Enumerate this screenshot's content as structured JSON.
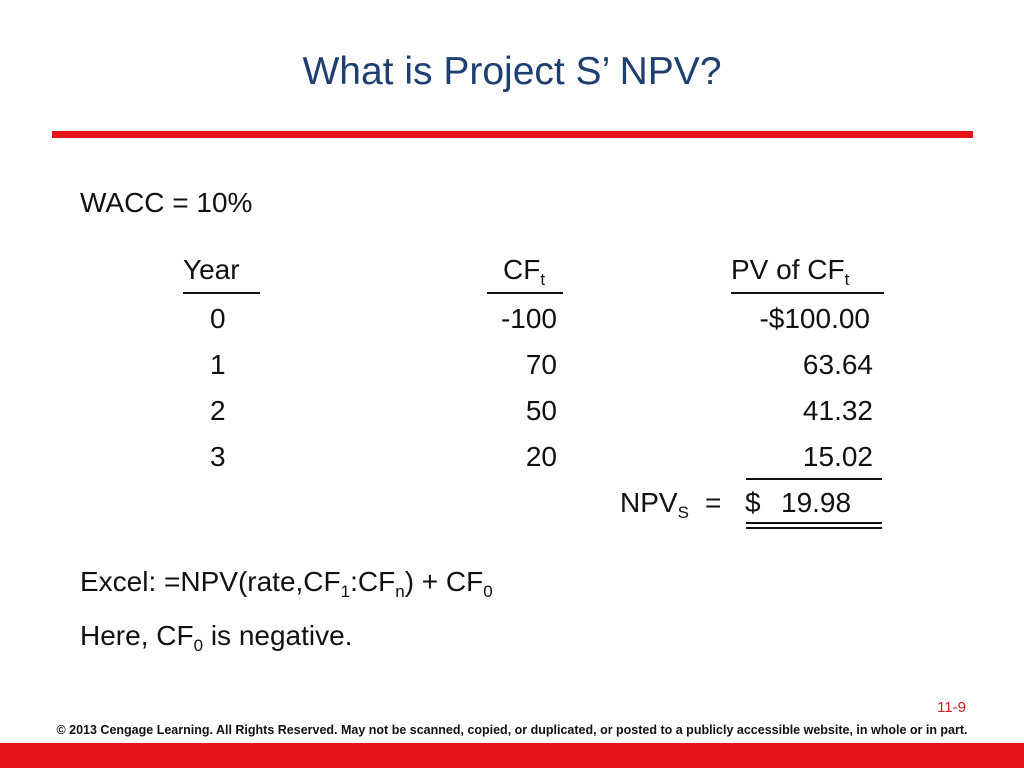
{
  "slide": {
    "title": "What is Project S’ NPV?",
    "wacc_label": "WACC = 10%"
  },
  "table": {
    "headers": {
      "year": "Year",
      "cf": "CF",
      "cf_sub": "t",
      "pv": "PV of CF",
      "pv_sub": "t"
    },
    "rows": [
      {
        "year": "0",
        "cf": "-100",
        "pv": "-$100.00"
      },
      {
        "year": "1",
        "cf": "70",
        "pv": "63.64"
      },
      {
        "year": "2",
        "cf": "50",
        "pv": "41.32"
      },
      {
        "year": "3",
        "cf": "20",
        "pv": "15.02"
      }
    ],
    "npv": {
      "label": "NPV",
      "sub": "S",
      "equals": "=",
      "currency": "$",
      "value": "19.98"
    }
  },
  "notes": {
    "excel": {
      "p1": "Excel:  =NPV(rate,CF",
      "s1": "1",
      "p2": ":CF",
      "s2": "n",
      "p3": ") + CF",
      "s3": "0"
    },
    "here": {
      "p1": "Here, CF",
      "s1": "0",
      "p2": " is negative."
    }
  },
  "footer": {
    "page": "11-9",
    "copyright": "© 2013 Cengage Learning. All Rights Reserved. May not be scanned, copied, or duplicated, or posted to a publicly accessible website, in whole or in part."
  },
  "colors": {
    "title": "#1f3f73",
    "accent_red": "#e8141c",
    "page_number": "#cc1a1a"
  }
}
